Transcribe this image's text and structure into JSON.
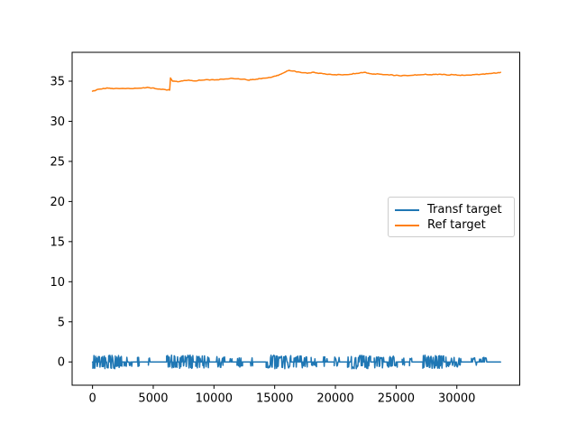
{
  "chart_data": {
    "type": "line",
    "title": "",
    "xlabel": "",
    "ylabel": "",
    "grid": false,
    "background": "#ffffff",
    "axes_color": "#000000",
    "xlim": [
      -1680,
      35180
    ],
    "ylim": [
      -2.9,
      38.6
    ],
    "x_ticks": [
      0,
      5000,
      10000,
      15000,
      20000,
      25000,
      30000
    ],
    "y_ticks": [
      0,
      5,
      10,
      15,
      20,
      25,
      30,
      35
    ],
    "legend": {
      "position": "center-right",
      "border_color": "#cccccc",
      "entries": [
        {
          "label": "Transf target",
          "color": "#1f77b4"
        },
        {
          "label": "Ref target",
          "color": "#ff7f0e"
        }
      ]
    },
    "series": [
      {
        "name": "Transf target",
        "color": "#1f77b4",
        "kind": "noise-bursts",
        "baseline": 0,
        "x_start": 0,
        "x_end": 33600,
        "bursts": [
          {
            "start": 30,
            "end": 2450,
            "amp": 0.85,
            "gap": 0.15,
            "mode": "both"
          },
          {
            "start": 2600,
            "end": 3300,
            "amp": 0.7,
            "gap": 0.5,
            "mode": "both"
          },
          {
            "start": 3700,
            "end": 3850,
            "amp": 0.6,
            "gap": 0.3,
            "mode": "both"
          },
          {
            "start": 4600,
            "end": 4800,
            "amp": 0.55,
            "gap": 0.4,
            "mode": "both"
          },
          {
            "start": 6100,
            "end": 8300,
            "amp": 0.85,
            "gap": 0.15,
            "mode": "both"
          },
          {
            "start": 8500,
            "end": 9800,
            "amp": 0.8,
            "gap": 0.35,
            "mode": "both"
          },
          {
            "start": 10200,
            "end": 10900,
            "amp": 0.7,
            "gap": 0.4,
            "mode": "both"
          },
          {
            "start": 11300,
            "end": 11500,
            "amp": 0.6,
            "gap": 0.4,
            "mode": "both"
          },
          {
            "start": 11900,
            "end": 12350,
            "amp": 0.65,
            "gap": 0.45,
            "mode": "both"
          },
          {
            "start": 13000,
            "end": 13200,
            "amp": 0.6,
            "gap": 0.45,
            "mode": "both"
          },
          {
            "start": 14300,
            "end": 16350,
            "amp": 0.85,
            "gap": 0.15,
            "mode": "both"
          },
          {
            "start": 16550,
            "end": 17700,
            "amp": 0.75,
            "gap": 0.35,
            "mode": "both"
          },
          {
            "start": 18000,
            "end": 18450,
            "amp": 0.65,
            "gap": 0.45,
            "mode": "both"
          },
          {
            "start": 18900,
            "end": 19350,
            "amp": 0.65,
            "gap": 0.45,
            "mode": "both"
          },
          {
            "start": 19900,
            "end": 20350,
            "amp": 0.6,
            "gap": 0.5,
            "mode": "both"
          },
          {
            "start": 21000,
            "end": 22900,
            "amp": 0.85,
            "gap": 0.18,
            "mode": "both"
          },
          {
            "start": 23200,
            "end": 25100,
            "amp": 0.75,
            "gap": 0.4,
            "mode": "both"
          },
          {
            "start": 25500,
            "end": 25700,
            "amp": 0.5,
            "gap": 0.4,
            "mode": "both"
          },
          {
            "start": 26100,
            "end": 26300,
            "amp": 0.5,
            "gap": 0.4,
            "mode": "both"
          },
          {
            "start": 27200,
            "end": 28950,
            "amp": 0.85,
            "gap": 0.15,
            "mode": "both"
          },
          {
            "start": 29100,
            "end": 30500,
            "amp": 0.65,
            "gap": 0.45,
            "mode": "down"
          },
          {
            "start": 31200,
            "end": 32500,
            "amp": 0.6,
            "gap": 0.5,
            "mode": "up"
          },
          {
            "start": 32800,
            "end": 33200,
            "amp": 0.45,
            "gap": 0.5,
            "mode": "both"
          }
        ]
      },
      {
        "name": "Ref target",
        "color": "#ff7f0e",
        "kind": "keypoints",
        "points": [
          [
            0,
            33.75
          ],
          [
            400,
            33.95
          ],
          [
            900,
            34.1
          ],
          [
            1300,
            34.15
          ],
          [
            1700,
            34.05
          ],
          [
            2100,
            34.1
          ],
          [
            2600,
            34.05
          ],
          [
            3100,
            34.1
          ],
          [
            3600,
            34.1
          ],
          [
            4100,
            34.15
          ],
          [
            4500,
            34.2
          ],
          [
            4900,
            34.15
          ],
          [
            5400,
            34.05
          ],
          [
            5900,
            33.95
          ],
          [
            6350,
            33.9
          ],
          [
            6420,
            35.4
          ],
          [
            6600,
            35.0
          ],
          [
            7000,
            34.95
          ],
          [
            7400,
            35.05
          ],
          [
            7900,
            35.1
          ],
          [
            8400,
            35.05
          ],
          [
            8900,
            35.15
          ],
          [
            9400,
            35.2
          ],
          [
            9900,
            35.15
          ],
          [
            10400,
            35.2
          ],
          [
            10900,
            35.3
          ],
          [
            11400,
            35.35
          ],
          [
            11900,
            35.3
          ],
          [
            12400,
            35.25
          ],
          [
            12900,
            35.15
          ],
          [
            13300,
            35.2
          ],
          [
            13700,
            35.3
          ],
          [
            14100,
            35.35
          ],
          [
            14500,
            35.45
          ],
          [
            15000,
            35.6
          ],
          [
            15400,
            35.8
          ],
          [
            15800,
            36.1
          ],
          [
            16200,
            36.35
          ],
          [
            16500,
            36.3
          ],
          [
            16900,
            36.15
          ],
          [
            17300,
            36.05
          ],
          [
            17800,
            36.0
          ],
          [
            18200,
            36.1
          ],
          [
            18600,
            36.0
          ],
          [
            19100,
            35.9
          ],
          [
            19600,
            35.85
          ],
          [
            20100,
            35.8
          ],
          [
            20600,
            35.8
          ],
          [
            21100,
            35.85
          ],
          [
            21600,
            35.95
          ],
          [
            22100,
            36.05
          ],
          [
            22400,
            36.1
          ],
          [
            22800,
            35.95
          ],
          [
            23300,
            35.9
          ],
          [
            23800,
            35.85
          ],
          [
            24300,
            35.8
          ],
          [
            24800,
            35.75
          ],
          [
            25300,
            35.7
          ],
          [
            25800,
            35.7
          ],
          [
            26300,
            35.75
          ],
          [
            26800,
            35.8
          ],
          [
            27300,
            35.85
          ],
          [
            27800,
            35.8
          ],
          [
            28300,
            35.85
          ],
          [
            28800,
            35.85
          ],
          [
            29300,
            35.8
          ],
          [
            29800,
            35.8
          ],
          [
            30300,
            35.75
          ],
          [
            30800,
            35.75
          ],
          [
            31300,
            35.8
          ],
          [
            31800,
            35.85
          ],
          [
            32300,
            35.9
          ],
          [
            32800,
            35.95
          ],
          [
            33300,
            36.05
          ],
          [
            33600,
            36.1
          ]
        ]
      }
    ]
  }
}
